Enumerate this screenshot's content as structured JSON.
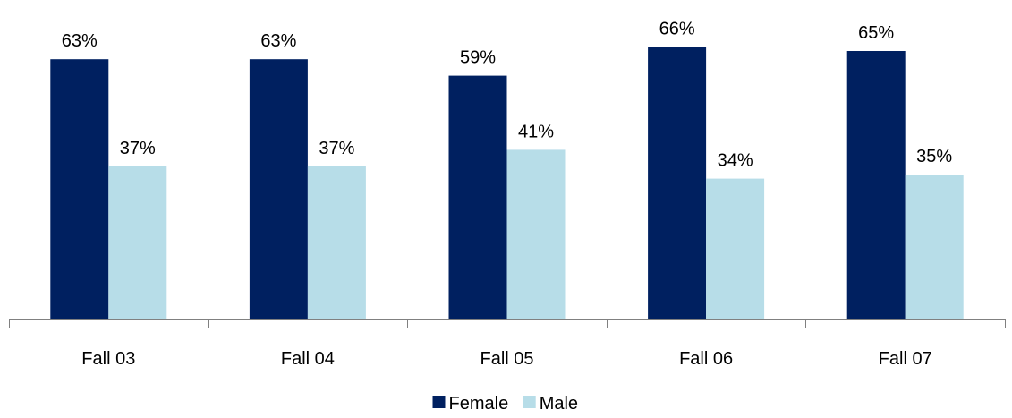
{
  "chart_data": {
    "type": "bar",
    "categories": [
      "Fall 03",
      "Fall 04",
      "Fall 05",
      "Fall 06",
      "Fall 07"
    ],
    "series": [
      {
        "name": "Female",
        "values": [
          63,
          63,
          59,
          66,
          65
        ],
        "labels": [
          "63%",
          "63%",
          "59%",
          "66%",
          "65%"
        ],
        "color": "#002060"
      },
      {
        "name": "Male",
        "values": [
          37,
          37,
          41,
          34,
          35
        ],
        "labels": [
          "37%",
          "37%",
          "41%",
          "34%",
          "35%"
        ],
        "color": "#B7DDE8"
      }
    ],
    "title": "",
    "xlabel": "",
    "ylabel": "",
    "ylim": [
      0,
      70
    ],
    "grid": false,
    "legend": "bottom-center"
  }
}
